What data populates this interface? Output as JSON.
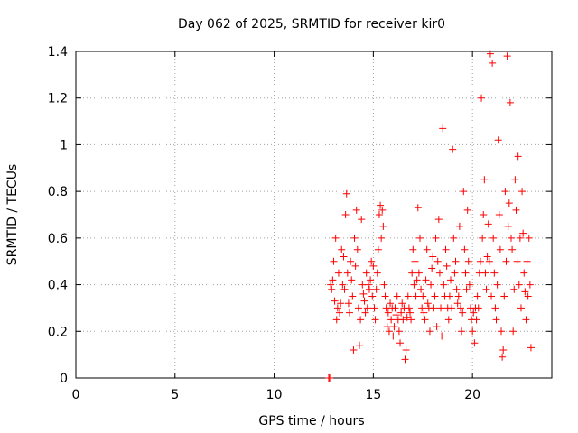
{
  "chart_data": {
    "type": "scatter",
    "title": "Day 062 of 2025, SRMTID for receiver kir0",
    "xlabel": "GPS time / hours",
    "ylabel": "SRMTID / TECUs",
    "xlim": [
      0,
      24
    ],
    "ylim": [
      0,
      1.4
    ],
    "xticks": [
      0,
      5,
      10,
      15,
      20
    ],
    "xtick_labels": [
      "0",
      "5",
      "10",
      "15",
      "20"
    ],
    "yticks": [
      0,
      0.2,
      0.4,
      0.6,
      0.8,
      1.0,
      1.2,
      1.4
    ],
    "ytick_labels": [
      "0",
      "0.2",
      "0.4",
      "0.6",
      "0.8",
      "1",
      "1.2",
      "1.4"
    ],
    "grid": true,
    "marker": "+",
    "color": "#ff0000",
    "series": [
      {
        "name": "SRMTID",
        "points": [
          [
            12.75,
            0.0
          ],
          [
            12.8,
            0.0
          ],
          [
            12.85,
            0.4
          ],
          [
            12.9,
            0.38
          ],
          [
            12.95,
            0.42
          ],
          [
            13.0,
            0.5
          ],
          [
            13.05,
            0.33
          ],
          [
            13.1,
            0.6
          ],
          [
            13.15,
            0.25
          ],
          [
            13.2,
            0.3
          ],
          [
            13.25,
            0.45
          ],
          [
            13.3,
            0.28
          ],
          [
            13.35,
            0.32
          ],
          [
            13.4,
            0.55
          ],
          [
            13.45,
            0.4
          ],
          [
            13.5,
            0.52
          ],
          [
            13.55,
            0.38
          ],
          [
            13.6,
            0.7
          ],
          [
            13.65,
            0.79
          ],
          [
            13.7,
            0.45
          ],
          [
            13.75,
            0.32
          ],
          [
            13.8,
            0.28
          ],
          [
            13.85,
            0.5
          ],
          [
            13.9,
            0.42
          ],
          [
            13.95,
            0.35
          ],
          [
            14.0,
            0.12
          ],
          [
            14.05,
            0.6
          ],
          [
            14.1,
            0.48
          ],
          [
            14.15,
            0.72
          ],
          [
            14.2,
            0.55
          ],
          [
            14.25,
            0.3
          ],
          [
            14.3,
            0.14
          ],
          [
            14.35,
            0.25
          ],
          [
            14.4,
            0.68
          ],
          [
            14.45,
            0.4
          ],
          [
            14.5,
            0.36
          ],
          [
            14.55,
            0.33
          ],
          [
            14.6,
            0.28
          ],
          [
            14.65,
            0.45
          ],
          [
            14.7,
            0.3
          ],
          [
            14.75,
            0.4
          ],
          [
            14.8,
            0.38
          ],
          [
            14.85,
            0.42
          ],
          [
            14.9,
            0.5
          ],
          [
            14.95,
            0.35
          ],
          [
            15.0,
            0.48
          ],
          [
            15.05,
            0.3
          ],
          [
            15.1,
            0.25
          ],
          [
            15.15,
            0.38
          ],
          [
            15.2,
            0.45
          ],
          [
            15.25,
            0.55
          ],
          [
            15.3,
            0.7
          ],
          [
            15.35,
            0.74
          ],
          [
            15.4,
            0.6
          ],
          [
            15.45,
            0.72
          ],
          [
            15.5,
            0.65
          ],
          [
            15.55,
            0.4
          ],
          [
            15.6,
            0.35
          ],
          [
            15.65,
            0.3
          ],
          [
            15.7,
            0.22
          ],
          [
            15.75,
            0.28
          ],
          [
            15.8,
            0.2
          ],
          [
            15.85,
            0.32
          ],
          [
            15.9,
            0.25
          ],
          [
            15.95,
            0.3
          ],
          [
            16.0,
            0.18
          ],
          [
            16.05,
            0.22
          ],
          [
            16.1,
            0.3
          ],
          [
            16.15,
            0.27
          ],
          [
            16.2,
            0.35
          ],
          [
            16.25,
            0.25
          ],
          [
            16.3,
            0.2
          ],
          [
            16.35,
            0.15
          ],
          [
            16.4,
            0.28
          ],
          [
            16.45,
            0.32
          ],
          [
            16.5,
            0.25
          ],
          [
            16.55,
            0.3
          ],
          [
            16.6,
            0.08
          ],
          [
            16.65,
            0.12
          ],
          [
            16.7,
            0.26
          ],
          [
            16.75,
            0.35
          ],
          [
            16.8,
            0.3
          ],
          [
            16.85,
            0.28
          ],
          [
            16.9,
            0.25
          ],
          [
            16.95,
            0.45
          ],
          [
            17.0,
            0.55
          ],
          [
            17.05,
            0.4
          ],
          [
            17.1,
            0.5
          ],
          [
            17.15,
            0.35
          ],
          [
            17.2,
            0.42
          ],
          [
            17.25,
            0.73
          ],
          [
            17.3,
            0.45
          ],
          [
            17.35,
            0.6
          ],
          [
            17.4,
            0.38
          ],
          [
            17.45,
            0.3
          ],
          [
            17.5,
            0.35
          ],
          [
            17.55,
            0.28
          ],
          [
            17.6,
            0.25
          ],
          [
            17.65,
            0.42
          ],
          [
            17.7,
            0.55
          ],
          [
            17.75,
            0.32
          ],
          [
            17.8,
            0.3
          ],
          [
            17.85,
            0.2
          ],
          [
            17.9,
            0.4
          ],
          [
            17.95,
            0.47
          ],
          [
            18.0,
            0.52
          ],
          [
            18.05,
            0.3
          ],
          [
            18.1,
            0.35
          ],
          [
            18.15,
            0.6
          ],
          [
            18.2,
            0.22
          ],
          [
            18.25,
            0.5
          ],
          [
            18.3,
            0.68
          ],
          [
            18.35,
            0.45
          ],
          [
            18.4,
            0.3
          ],
          [
            18.45,
            0.18
          ],
          [
            18.5,
            1.07
          ],
          [
            18.55,
            0.4
          ],
          [
            18.6,
            0.35
          ],
          [
            18.65,
            0.55
          ],
          [
            18.7,
            0.48
          ],
          [
            18.75,
            0.3
          ],
          [
            18.8,
            0.25
          ],
          [
            18.85,
            0.35
          ],
          [
            18.9,
            0.42
          ],
          [
            18.95,
            0.3
          ],
          [
            19.0,
            0.98
          ],
          [
            19.05,
            0.6
          ],
          [
            19.1,
            0.45
          ],
          [
            19.15,
            0.5
          ],
          [
            19.2,
            0.38
          ],
          [
            19.25,
            0.32
          ],
          [
            19.3,
            0.35
          ],
          [
            19.35,
            0.65
          ],
          [
            19.4,
            0.3
          ],
          [
            19.45,
            0.2
          ],
          [
            19.5,
            0.28
          ],
          [
            19.55,
            0.8
          ],
          [
            19.6,
            0.55
          ],
          [
            19.65,
            0.45
          ],
          [
            19.7,
            0.38
          ],
          [
            19.75,
            0.72
          ],
          [
            19.8,
            0.5
          ],
          [
            19.85,
            0.4
          ],
          [
            19.9,
            0.3
          ],
          [
            19.95,
            0.25
          ],
          [
            20.0,
            0.2
          ],
          [
            20.05,
            0.28
          ],
          [
            20.1,
            0.15
          ],
          [
            20.15,
            0.3
          ],
          [
            20.2,
            0.25
          ],
          [
            20.25,
            0.35
          ],
          [
            20.3,
            0.3
          ],
          [
            20.35,
            0.45
          ],
          [
            20.4,
            0.5
          ],
          [
            20.45,
            1.2
          ],
          [
            20.5,
            0.6
          ],
          [
            20.55,
            0.7
          ],
          [
            20.6,
            0.85
          ],
          [
            20.65,
            0.45
          ],
          [
            20.7,
            0.38
          ],
          [
            20.75,
            0.52
          ],
          [
            20.8,
            0.66
          ],
          [
            20.85,
            0.5
          ],
          [
            20.9,
            1.39
          ],
          [
            20.95,
            0.35
          ],
          [
            21.0,
            1.35
          ],
          [
            21.05,
            0.6
          ],
          [
            21.1,
            0.45
          ],
          [
            21.15,
            0.3
          ],
          [
            21.2,
            0.25
          ],
          [
            21.25,
            0.4
          ],
          [
            21.3,
            1.02
          ],
          [
            21.35,
            0.7
          ],
          [
            21.4,
            0.55
          ],
          [
            21.45,
            0.2
          ],
          [
            21.5,
            0.09
          ],
          [
            21.55,
            0.12
          ],
          [
            21.6,
            0.35
          ],
          [
            21.65,
            0.8
          ],
          [
            21.7,
            0.5
          ],
          [
            21.75,
            1.38
          ],
          [
            21.8,
            0.65
          ],
          [
            21.85,
            0.75
          ],
          [
            21.9,
            1.18
          ],
          [
            21.95,
            0.6
          ],
          [
            22.0,
            0.55
          ],
          [
            22.05,
            0.2
          ],
          [
            22.1,
            0.38
          ],
          [
            22.15,
            0.85
          ],
          [
            22.2,
            0.72
          ],
          [
            22.25,
            0.5
          ],
          [
            22.3,
            0.95
          ],
          [
            22.35,
            0.4
          ],
          [
            22.4,
            0.6
          ],
          [
            22.45,
            0.3
          ],
          [
            22.5,
            0.8
          ],
          [
            22.55,
            0.62
          ],
          [
            22.6,
            0.45
          ],
          [
            22.65,
            0.37
          ],
          [
            22.7,
            0.25
          ],
          [
            22.75,
            0.5
          ],
          [
            22.8,
            0.35
          ],
          [
            22.85,
            0.6
          ],
          [
            22.9,
            0.4
          ],
          [
            22.95,
            0.13
          ]
        ]
      }
    ]
  }
}
